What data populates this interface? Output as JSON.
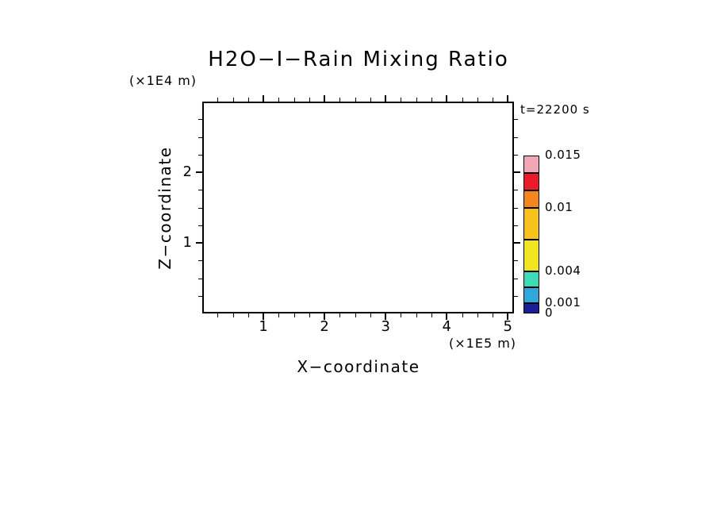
{
  "page": {
    "background": "#ffffff",
    "text_color": "#000000"
  },
  "chart_data": {
    "type": "heatmap",
    "title": "H2O−I−Rain Mixing Ratio",
    "annotation": "t=22200 s",
    "xlabel": "X−coordinate",
    "x_units_label": "(×1E5 m)",
    "ylabel": "Z−coordinate",
    "y_units_label": "(×1E4 m)",
    "xlim": [
      0,
      5.1
    ],
    "ylim": [
      0,
      3
    ],
    "x_major_ticks": [
      1,
      2,
      3,
      4,
      5
    ],
    "x_minor_tick_step": 0.25,
    "y_major_ticks": [
      1,
      2
    ],
    "y_minor_tick_step": 0.25,
    "grid": false,
    "field_values": [],
    "field_note": "plot area is blank — no rain mixing ratio contours visible",
    "colorbar": {
      "orientation": "vertical",
      "value_min": 0,
      "value_max": 0.015,
      "levels": [
        0,
        0.001,
        0.0025,
        0.004,
        0.007,
        0.01,
        0.011667,
        0.013333,
        0.015
      ],
      "segment_colors_bottom_to_top": [
        "#1A1F97",
        "#2FA8DC",
        "#3DDBB8",
        "#EFE620",
        "#F9C21A",
        "#F5861F",
        "#EA1C2C",
        "#F2A7B6"
      ],
      "labeled_levels": [
        {
          "value": 0.015,
          "label": "0.015"
        },
        {
          "value": 0.01,
          "label": "0.01"
        },
        {
          "value": 0.004,
          "label": "0.004"
        },
        {
          "value": 0.001,
          "label": "0.001"
        },
        {
          "value": 0,
          "label": "0"
        }
      ]
    }
  }
}
